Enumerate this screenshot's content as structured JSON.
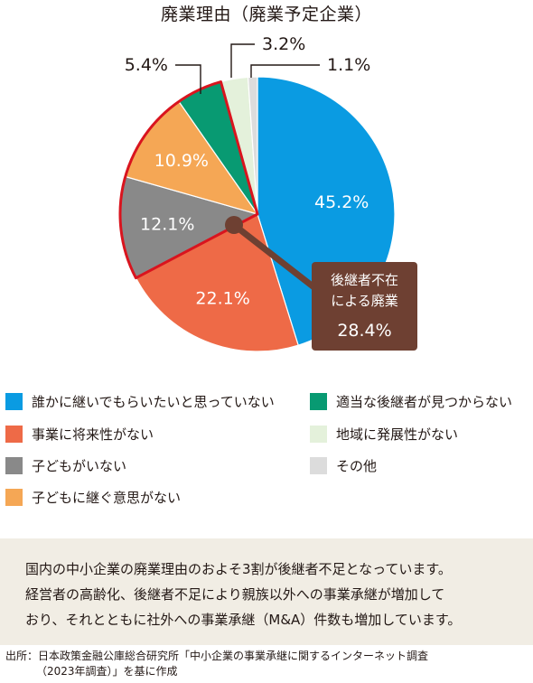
{
  "chart_data": {
    "type": "pie",
    "title": "廃業理由（廃業予定企業）",
    "categories": [
      "誰かに継いでもらいたいと思っていない",
      "事業に将来性がない",
      "子どもがいない",
      "子どもに継ぐ意思がない",
      "適当な後継者が見つからない",
      "地域に発展性がない",
      "その他"
    ],
    "values": [
      45.2,
      22.1,
      12.1,
      10.9,
      5.4,
      3.2,
      1.1
    ],
    "value_labels": [
      "45.2%",
      "22.1%",
      "12.1%",
      "10.9%",
      "5.4%",
      "3.2%",
      "1.1%"
    ],
    "colors": [
      "#0a9be2",
      "#ee6a47",
      "#898989",
      "#f5a755",
      "#089a72",
      "#e4f1db",
      "#dcdcdc"
    ],
    "label_colors": [
      "#ffffff",
      "#ffffff",
      "#ffffff",
      "#ffffff",
      "#231815",
      "#231815",
      "#231815"
    ],
    "highlight": {
      "slices": [
        2,
        3,
        4
      ],
      "border_color": "#d9141e",
      "callout_line1": "後継者不在",
      "callout_line2": "による廃業",
      "callout_value": "28.4%",
      "callout_color": "#6e4032"
    },
    "legend_placement": "bottom"
  },
  "note": {
    "lines": [
      "国内の中小企業の廃業理由のおよそ3割が後継者不足となっています。",
      "経営者の高齢化、後継者不足により親族以外への事業承継が増加して",
      "おり、それとともに社外への事業承継（M&A）件数も増加しています。"
    ]
  },
  "source": {
    "lines": [
      "出所：日本政策金融公庫総合研究所「中小企業の事業承継に関するインターネット調査",
      "（2023年調査）」を基に作成"
    ]
  }
}
